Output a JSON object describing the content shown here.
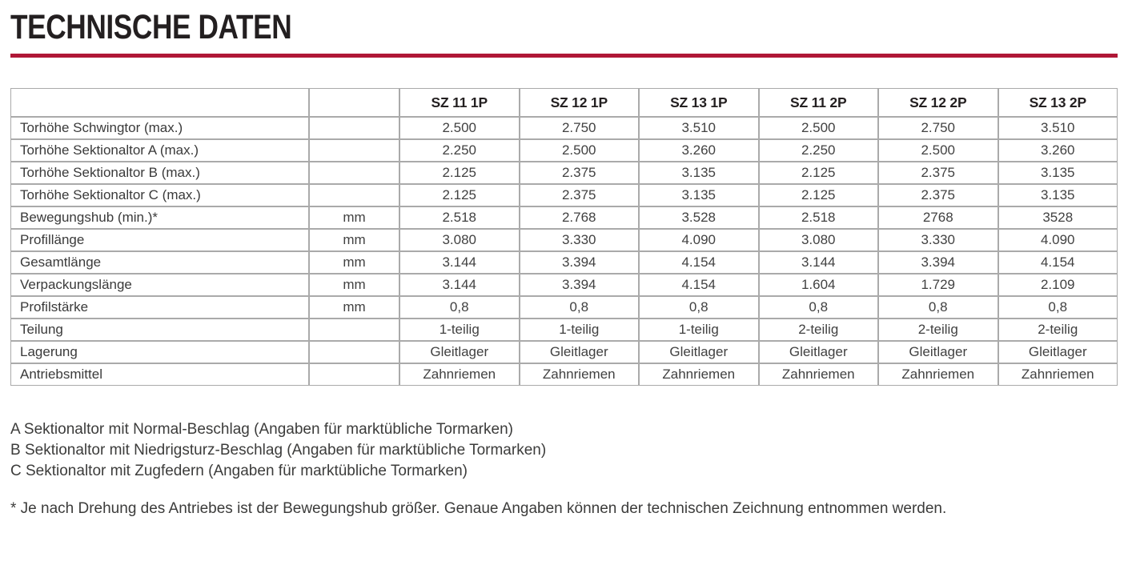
{
  "page": {
    "title": "TECHNISCHE DATEN",
    "accent_color": "#b01737"
  },
  "table": {
    "columns": [
      "SZ 11 1P",
      "SZ 12 1P",
      "SZ 13 1P",
      "SZ 11 2P",
      "SZ 12 2P",
      "SZ 13 2P"
    ],
    "rows": [
      {
        "label": "Torhöhe Schwingtor (max.)",
        "unit": "",
        "values": [
          "2.500",
          "2.750",
          "3.510",
          "2.500",
          "2.750",
          "3.510"
        ]
      },
      {
        "label": "Torhöhe Sektionaltor A (max.)",
        "unit": "",
        "values": [
          "2.250",
          "2.500",
          "3.260",
          "2.250",
          "2.500",
          "3.260"
        ]
      },
      {
        "label": "Torhöhe Sektionaltor B (max.)",
        "unit": "",
        "values": [
          "2.125",
          "2.375",
          "3.135",
          "2.125",
          "2.375",
          "3.135"
        ]
      },
      {
        "label": "Torhöhe Sektionaltor C (max.)",
        "unit": "",
        "values": [
          "2.125",
          "2.375",
          "3.135",
          "2.125",
          "2.375",
          "3.135"
        ]
      },
      {
        "label": "Bewegungshub (min.)*",
        "unit": "mm",
        "values": [
          "2.518",
          "2.768",
          "3.528",
          "2.518",
          "2768",
          "3528"
        ]
      },
      {
        "label": "Profillänge",
        "unit": "mm",
        "values": [
          "3.080",
          "3.330",
          "4.090",
          "3.080",
          "3.330",
          "4.090"
        ]
      },
      {
        "label": "Gesamtlänge",
        "unit": "mm",
        "values": [
          "3.144",
          "3.394",
          "4.154",
          "3.144",
          "3.394",
          "4.154"
        ]
      },
      {
        "label": "Verpackungslänge",
        "unit": "mm",
        "values": [
          "3.144",
          "3.394",
          "4.154",
          "1.604",
          "1.729",
          "2.109"
        ]
      },
      {
        "label": "Profilstärke",
        "unit": "mm",
        "values": [
          "0,8",
          "0,8",
          "0,8",
          "0,8",
          "0,8",
          "0,8"
        ]
      },
      {
        "label": "Teilung",
        "unit": "",
        "values": [
          "1-teilig",
          "1-teilig",
          "1-teilig",
          "2-teilig",
          "2-teilig",
          "2-teilig"
        ]
      },
      {
        "label": "Lagerung",
        "unit": "",
        "values": [
          "Gleitlager",
          "Gleitlager",
          "Gleitlager",
          "Gleitlager",
          "Gleitlager",
          "Gleitlager"
        ]
      },
      {
        "label": "Antriebsmittel",
        "unit": "",
        "values": [
          "Zahnriemen",
          "Zahnriemen",
          "Zahnriemen",
          "Zahnriemen",
          "Zahnriemen",
          "Zahnriemen"
        ]
      }
    ]
  },
  "footnotes": {
    "a": "A Sektionaltor mit Normal-Beschlag (Angaben für marktübliche Tormarken)",
    "b": "B Sektionaltor mit Niedrigsturz-Beschlag (Angaben für marktübliche Tormarken)",
    "c": "C Sektionaltor mit Zugfedern (Angaben für marktübliche Tormarken)",
    "asterisk": "* Je nach Drehung des Antriebes ist der Bewegungshub größer. Genaue Angaben können der technischen Zeichnung entnommen werden."
  }
}
